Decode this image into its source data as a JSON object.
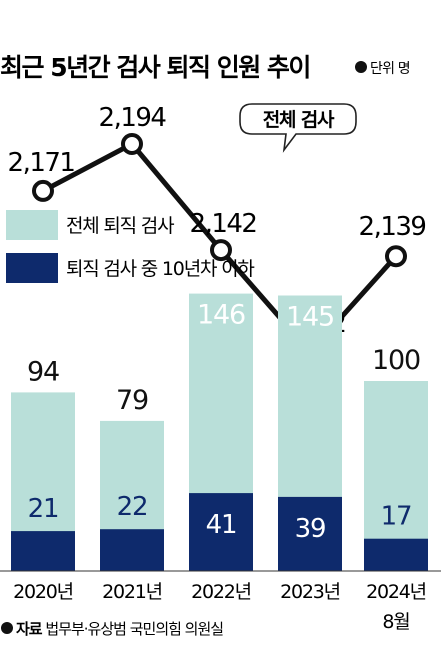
{
  "header": {
    "title": "최근 5년간 검사 퇴직 인원 추이",
    "unit_label": "단위 명"
  },
  "callout": "전체 검사",
  "source": {
    "prefix": "자료",
    "text": " 법무부·유상범 국민의힘 의원실"
  },
  "colors": {
    "total": "#b9dfd9",
    "under10": "#0e2a6c",
    "line": "#111111",
    "inner_total_label": "#ffffff",
    "inner_under10_label": "#ffffff",
    "inner_under10_label_small": "#0e2a6c"
  },
  "chart_data": [
    {
      "type": "line",
      "series": [
        {
          "name": "전체 검사",
          "values": [
            2171,
            2194,
            2142,
            2092,
            2139
          ]
        }
      ],
      "labels": [
        "2,171",
        "2,194",
        "2,142",
        "2,092",
        "2,139"
      ],
      "categories": [
        "2020년",
        "2021년",
        "2022년",
        "2023년",
        "2024년 8월"
      ]
    },
    {
      "type": "bar",
      "categories": [
        "2020년",
        "2021년",
        "2022년",
        "2023년",
        "2024년 8월"
      ],
      "series": [
        {
          "name": "전체 퇴직 검사",
          "values": [
            94,
            79,
            146,
            145,
            100
          ]
        },
        {
          "name": "퇴직 검사 중 10년차 이하",
          "values": [
            21,
            22,
            41,
            39,
            17
          ]
        }
      ],
      "legend": [
        "전체 퇴직 검사",
        "퇴직 검사 중 10년차 이하"
      ]
    }
  ]
}
